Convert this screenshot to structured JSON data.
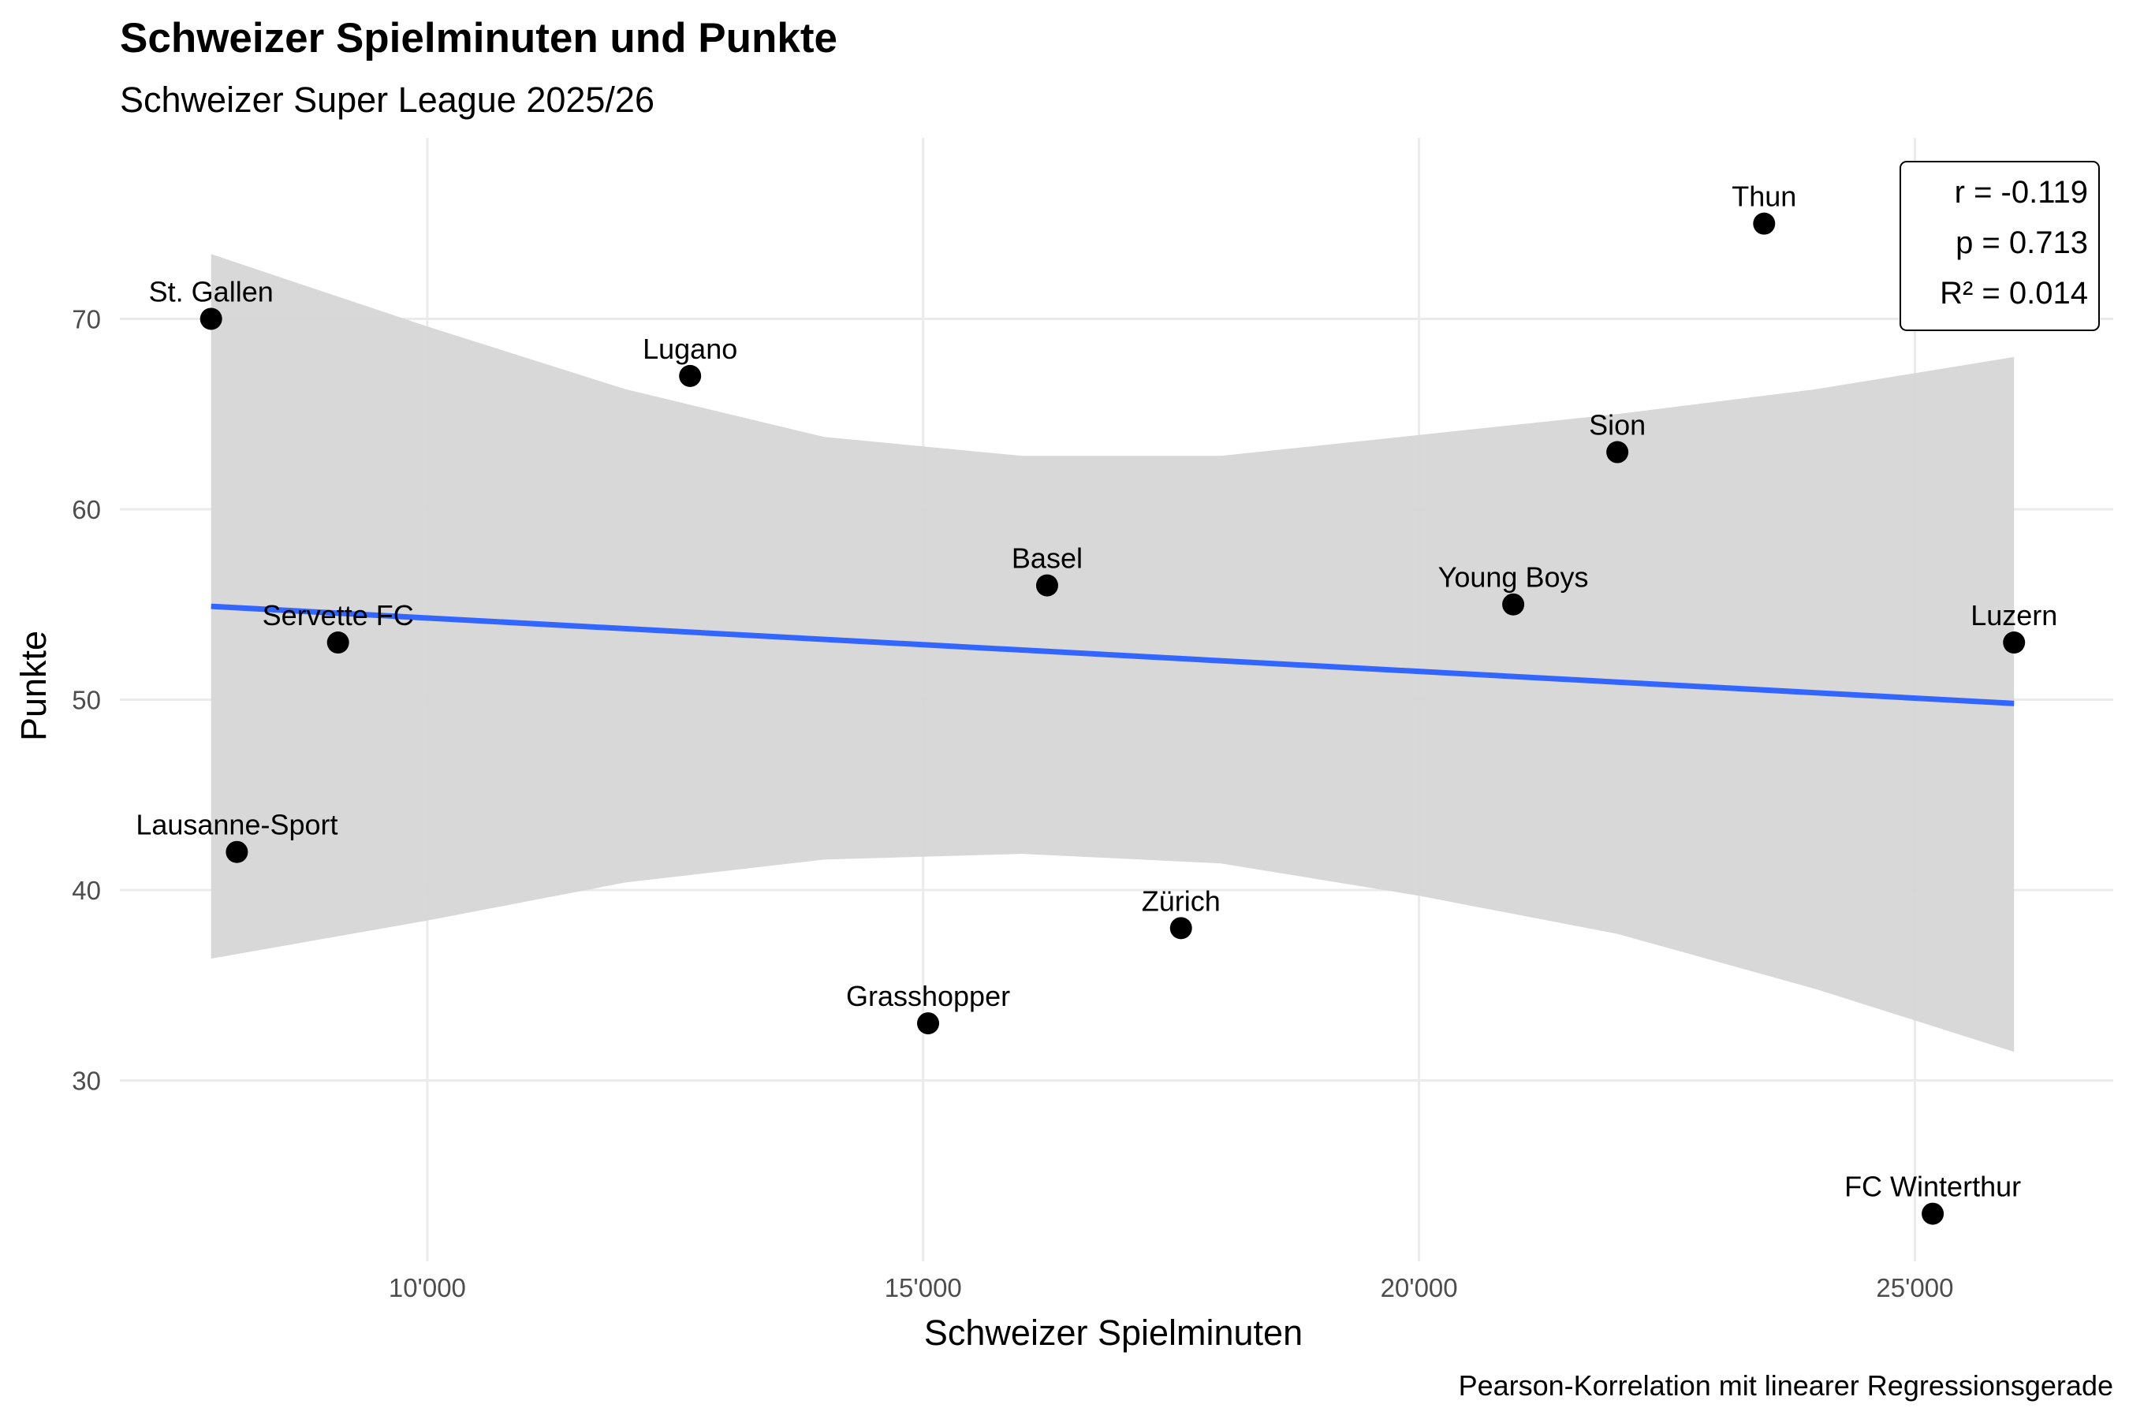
{
  "chart_data": {
    "type": "scatter",
    "title": "Schweizer Spielminuten und Punkte",
    "subtitle": "Schweizer Super League 2025/26",
    "xlabel": "Schweizer Spielminuten",
    "ylabel": "Punkte",
    "caption": "Pearson-Korrelation mit linearer Regressionsgerade",
    "xlim": [
      6900,
      27000
    ],
    "ylim": [
      20.5,
      79.5
    ],
    "x_ticks": [
      10000,
      15000,
      20000,
      25000
    ],
    "x_tick_labels": [
      "10'000",
      "15'000",
      "20'000",
      "25'000"
    ],
    "y_ticks": [
      30,
      40,
      50,
      60,
      70
    ],
    "y_tick_labels": [
      "30",
      "40",
      "50",
      "60",
      "70"
    ],
    "grid": true,
    "points": [
      {
        "label": "St. Gallen",
        "x": 7820,
        "y": 70
      },
      {
        "label": "Lugano",
        "x": 12650,
        "y": 67
      },
      {
        "label": "Servette FC",
        "x": 9100,
        "y": 53
      },
      {
        "label": "Lausanne-Sport",
        "x": 8080,
        "y": 42
      },
      {
        "label": "Basel",
        "x": 16250,
        "y": 56
      },
      {
        "label": "Grasshopper",
        "x": 15050,
        "y": 33
      },
      {
        "label": "Zürich",
        "x": 17600,
        "y": 38
      },
      {
        "label": "Young Boys",
        "x": 20950,
        "y": 55
      },
      {
        "label": "Sion",
        "x": 22000,
        "y": 63
      },
      {
        "label": "Thun",
        "x": 23480,
        "y": 75
      },
      {
        "label": "FC Winterthur",
        "x": 25180,
        "y": 23
      },
      {
        "label": "Luzern",
        "x": 26000,
        "y": 53
      }
    ],
    "regression": {
      "x": [
        7820,
        26000
      ],
      "y": [
        54.9,
        49.8
      ],
      "color": "#3366FF"
    },
    "confidence_band": {
      "x": [
        7820,
        10000,
        12000,
        14000,
        16000,
        18000,
        20000,
        22000,
        24000,
        26000
      ],
      "upper": [
        73.4,
        69.6,
        66.3,
        63.8,
        62.8,
        62.8,
        63.9,
        65.0,
        66.3,
        68.0
      ],
      "lower": [
        36.4,
        38.4,
        40.4,
        41.6,
        41.9,
        41.4,
        39.7,
        37.7,
        34.8,
        31.5
      ],
      "color": "#d6d6d6"
    },
    "stats": [
      "r = -0.119",
      "p = 0.713",
      "R² = 0.014"
    ],
    "stats_position": "top-right",
    "point_color": "#000000"
  }
}
